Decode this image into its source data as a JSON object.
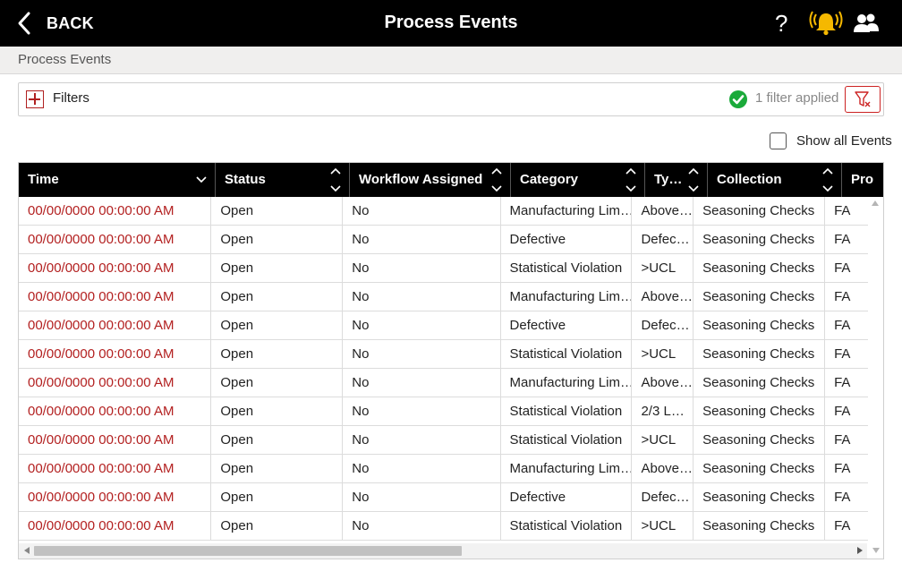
{
  "header": {
    "back_label": "BACK",
    "title": "Process Events",
    "help_label": "?"
  },
  "breadcrumb": "Process Events",
  "filters": {
    "label": "Filters",
    "status": "1 filter applied"
  },
  "show_all": {
    "label": "Show all Events",
    "checked": false
  },
  "colors": {
    "accent": "#c22222",
    "bell": "#f5b800",
    "success": "#1aaa3a",
    "time_text": "#b32020"
  },
  "icons": {
    "back": "chevron-left-icon",
    "help": "help-icon",
    "alarm": "alarm-bell-icon",
    "users": "users-icon",
    "expand": "plus-square-icon",
    "applied": "check-circle-icon",
    "clear_filter": "filter-clear-icon"
  },
  "table": {
    "columns": [
      "Time",
      "Status",
      "Workflow Assigned",
      "Category",
      "Ty…",
      "Collection",
      "Pro"
    ],
    "rows": [
      [
        "00/00/0000 00:00:00 AM",
        "Open",
        "No",
        "Manufacturing Lim…",
        "Above…",
        "Seasoning Checks",
        "FA"
      ],
      [
        "00/00/0000 00:00:00 AM",
        "Open",
        "No",
        "Defective",
        "Defec…",
        "Seasoning Checks",
        "FA"
      ],
      [
        "00/00/0000 00:00:00 AM",
        "Open",
        "No",
        "Statistical Violation",
        ">UCL",
        "Seasoning Checks",
        "FA"
      ],
      [
        "00/00/0000 00:00:00 AM",
        "Open",
        "No",
        "Manufacturing Lim…",
        "Above…",
        "Seasoning Checks",
        "FA"
      ],
      [
        "00/00/0000 00:00:00 AM",
        "Open",
        "No",
        "Defective",
        "Defec…",
        "Seasoning Checks",
        "FA"
      ],
      [
        "00/00/0000 00:00:00 AM",
        "Open",
        "No",
        "Statistical Violation",
        ">UCL",
        "Seasoning Checks",
        "FA"
      ],
      [
        "00/00/0000 00:00:00 AM",
        "Open",
        "No",
        "Manufacturing Lim…",
        "Above…",
        "Seasoning Checks",
        "FA"
      ],
      [
        "00/00/0000 00:00:00 AM",
        "Open",
        "No",
        "Statistical Violation",
        "2/3 L…",
        "Seasoning Checks",
        "FA"
      ],
      [
        "00/00/0000 00:00:00 AM",
        "Open",
        "No",
        "Statistical Violation",
        ">UCL",
        "Seasoning Checks",
        "FA"
      ],
      [
        "00/00/0000 00:00:00 AM",
        "Open",
        "No",
        "Manufacturing Lim…",
        "Above…",
        "Seasoning Checks",
        "FA"
      ],
      [
        "00/00/0000 00:00:00 AM",
        "Open",
        "No",
        "Defective",
        "Defec…",
        "Seasoning Checks",
        "FA"
      ],
      [
        "00/00/0000 00:00:00 AM",
        "Open",
        "No",
        "Statistical Violation",
        ">UCL",
        "Seasoning Checks",
        "FA"
      ]
    ]
  }
}
